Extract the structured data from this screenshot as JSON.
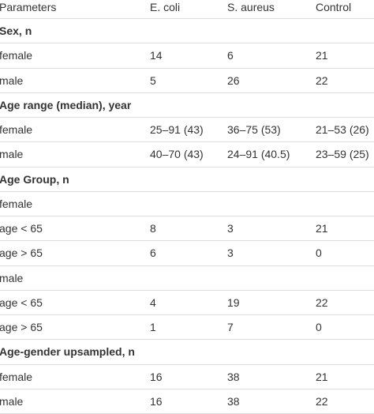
{
  "table": {
    "header": [
      "Parameters",
      "E. coli",
      "S. aureus",
      "Control"
    ],
    "rows": [
      [
        "Sex, n"
      ],
      [
        "female",
        "14",
        "6",
        "21"
      ],
      [
        "male",
        "5",
        "26",
        "22"
      ],
      [
        "Age range (median), year"
      ],
      [
        "female",
        "25–91 (43)",
        "36–75 (53)",
        "21–53 (26)"
      ],
      [
        "male",
        "40–70 (43)",
        "24–91 (40.5)",
        "23–59 (25)"
      ],
      [
        "Age Group, n"
      ],
      [
        "female"
      ],
      [
        "age < 65",
        "8",
        "3",
        "21"
      ],
      [
        "age > 65",
        "6",
        "3",
        "0"
      ],
      [
        "male"
      ],
      [
        "age < 65",
        "4",
        "19",
        "22"
      ],
      [
        "age > 65",
        "1",
        "7",
        "0"
      ],
      [
        "Age-gender upsampled, n"
      ],
      [
        "female",
        "16",
        "38",
        "21"
      ],
      [
        "male",
        "16",
        "38",
        "22"
      ]
    ]
  }
}
